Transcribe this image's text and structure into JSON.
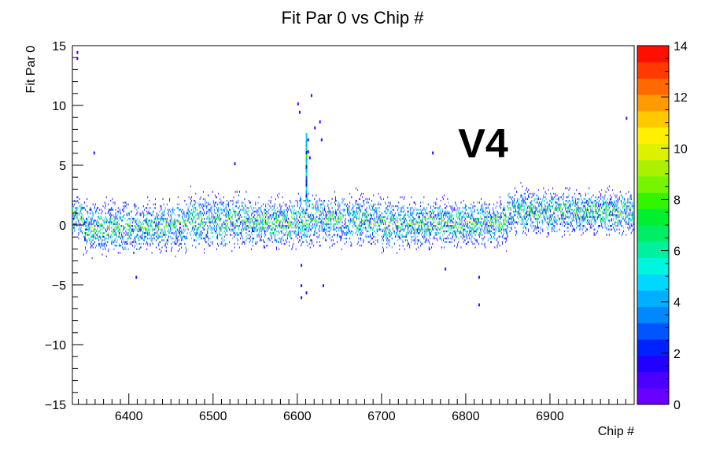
{
  "chart_data": {
    "type": "heatmap",
    "title": "Fit Par 0 vs Chip #",
    "xlabel": "Chip #",
    "ylabel": "Fit Par 0",
    "xlim": [
      6333,
      7000
    ],
    "ylim": [
      -15,
      15
    ],
    "x_ticks": [
      "6400",
      "6500",
      "6600",
      "6700",
      "6800",
      "6900"
    ],
    "x_tick_values": [
      6400,
      6500,
      6600,
      6700,
      6800,
      6900
    ],
    "y_ticks": [
      "−15",
      "−10",
      "−5",
      "0",
      "5",
      "10",
      "15"
    ],
    "y_tick_values": [
      -15,
      -10,
      -5,
      0,
      5,
      10,
      15
    ],
    "z_range": [
      0,
      14
    ],
    "z_ticks": [
      "0",
      "2",
      "4",
      "6",
      "8",
      "10",
      "12",
      "14"
    ],
    "z_tick_values": [
      0,
      2,
      4,
      6,
      8,
      10,
      12,
      14
    ],
    "annotation": {
      "text": "V4",
      "color": "#ee0000"
    },
    "palette": [
      "#6a00ff",
      "#4b00ff",
      "#2200ff",
      "#0022ff",
      "#0055ff",
      "#0088ff",
      "#00b0ff",
      "#00d8ff",
      "#00f5e0",
      "#00f0a0",
      "#00ee66",
      "#00f030",
      "#33f500",
      "#77f500",
      "#aaf000",
      "#ddf000",
      "#fff000",
      "#ffc800",
      "#ff9a00",
      "#ff6a00",
      "#ff3a00",
      "#ff0f00"
    ],
    "band_segments": [
      {
        "x0": 6333,
        "x1": 6345,
        "center": 0.6,
        "spread": 1.3
      },
      {
        "x0": 6345,
        "x1": 6420,
        "center": -0.3,
        "spread": 1.6
      },
      {
        "x0": 6420,
        "x1": 6470,
        "center": -0.2,
        "spread": 1.6
      },
      {
        "x0": 6470,
        "x1": 6540,
        "center": 0.3,
        "spread": 1.7
      },
      {
        "x0": 6540,
        "x1": 6600,
        "center": 0.1,
        "spread": 1.6
      },
      {
        "x0": 6600,
        "x1": 6620,
        "center": 0.4,
        "spread": 1.8
      },
      {
        "x0": 6620,
        "x1": 6700,
        "center": 0.3,
        "spread": 1.6
      },
      {
        "x0": 6700,
        "x1": 6760,
        "center": 0.0,
        "spread": 1.6
      },
      {
        "x0": 6760,
        "x1": 6850,
        "center": 0.1,
        "spread": 1.5
      },
      {
        "x0": 6850,
        "x1": 7000,
        "center": 1.0,
        "spread": 1.4
      }
    ],
    "outliers": [
      {
        "x": 6338,
        "y": 14.3
      },
      {
        "x": 6338,
        "y": 13.8
      },
      {
        "x": 6358,
        "y": 5.9
      },
      {
        "x": 6408,
        "y": -4.5
      },
      {
        "x": 6525,
        "y": 5.0
      },
      {
        "x": 6600,
        "y": 10.0
      },
      {
        "x": 6602,
        "y": 9.3
      },
      {
        "x": 6604,
        "y": -3.5
      },
      {
        "x": 6604,
        "y": -5.2
      },
      {
        "x": 6604,
        "y": -6.2
      },
      {
        "x": 6610,
        "y": -5.8
      },
      {
        "x": 6612,
        "y": 7.0
      },
      {
        "x": 6612,
        "y": 6.0
      },
      {
        "x": 6614,
        "y": 5.5
      },
      {
        "x": 6616,
        "y": 10.7
      },
      {
        "x": 6620,
        "y": 8.0
      },
      {
        "x": 6626,
        "y": 8.5
      },
      {
        "x": 6628,
        "y": 7.0
      },
      {
        "x": 6630,
        "y": -5.2
      },
      {
        "x": 6760,
        "y": 5.9
      },
      {
        "x": 6775,
        "y": -3.8
      },
      {
        "x": 6815,
        "y": -4.5
      },
      {
        "x": 6815,
        "y": -6.8
      },
      {
        "x": 6990,
        "y": 8.8
      }
    ],
    "spike_column": {
      "x": 6610,
      "y_min": 2.0,
      "y_max": 7.5
    }
  }
}
